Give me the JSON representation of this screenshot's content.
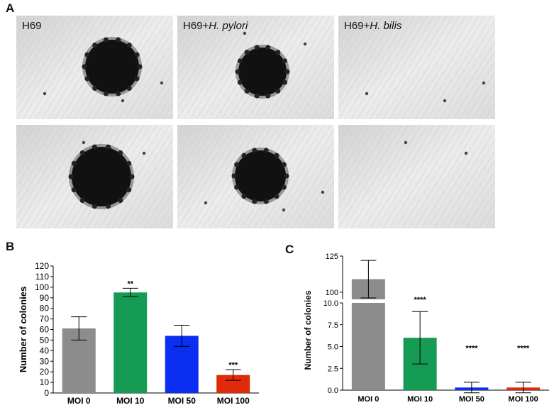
{
  "panel_a": {
    "letter": "A",
    "columns": [
      {
        "label_plain": "H69",
        "label_italic": ""
      },
      {
        "label_plain": "H69+",
        "label_italic": "H. pylori"
      },
      {
        "label_plain": "H69+",
        "label_italic": "H. bilis"
      }
    ]
  },
  "chart_data": [
    {
      "panel": "B",
      "type": "bar",
      "ylabel": "Number of colonies",
      "categories": [
        "MOI 0",
        "MOI 10",
        "MOI 50",
        "MOI 100"
      ],
      "values": [
        61,
        95,
        54,
        17
      ],
      "errors": [
        11,
        4,
        10,
        5
      ],
      "significance": [
        "",
        "**",
        "",
        "***"
      ],
      "colors": [
        "#8c8c8c",
        "#169b55",
        "#0a2ff2",
        "#e02a0a"
      ],
      "ylim": [
        0,
        120
      ],
      "yticks": [
        0,
        10,
        20,
        30,
        40,
        50,
        60,
        70,
        80,
        90,
        100,
        110,
        120
      ]
    },
    {
      "panel": "C",
      "type": "bar",
      "ylabel": "Number of colonies",
      "categories": [
        "MOI 0",
        "MOI 10",
        "MOI 50",
        "MOI 100"
      ],
      "values": [
        109,
        6.0,
        0.3,
        0.3
      ],
      "errors": [
        13,
        3.0,
        0.6,
        0.6
      ],
      "significance": [
        "",
        "****",
        "****",
        "****"
      ],
      "colors": [
        "#8c8c8c",
        "#169b55",
        "#0a2ff2",
        "#e02a0a"
      ],
      "broken_axis": {
        "lower": [
          0,
          10
        ],
        "upper": [
          95,
          125
        ]
      },
      "yticks_lower": [
        "0.0",
        "2.5",
        "5.0",
        "7.5",
        "10.0"
      ],
      "yticks_upper": [
        "100",
        "125"
      ]
    }
  ]
}
